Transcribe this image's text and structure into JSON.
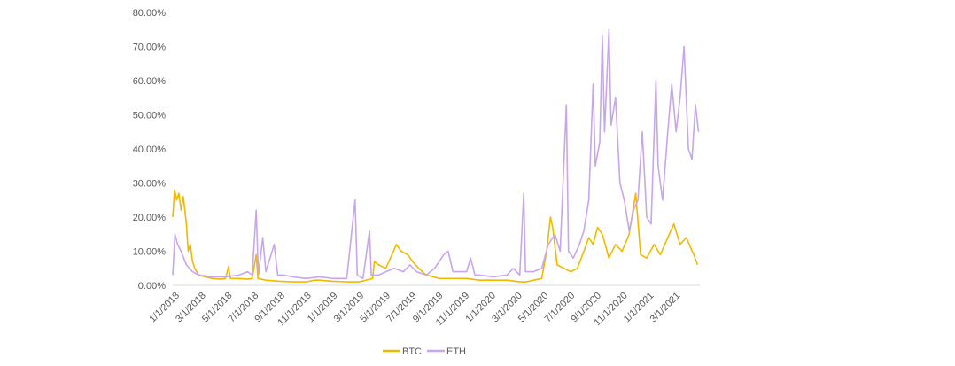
{
  "chart_data": {
    "type": "line",
    "title": "",
    "xlabel": "",
    "ylabel": "",
    "ylim": [
      0,
      0.8
    ],
    "y_ticks": [
      "0.00%",
      "10.00%",
      "20.00%",
      "30.00%",
      "40.00%",
      "50.00%",
      "60.00%",
      "70.00%",
      "80.00%"
    ],
    "x_ticks": [
      "1/1/2018",
      "3/1/2018",
      "5/1/2018",
      "7/1/2018",
      "9/1/2018",
      "11/1/2018",
      "1/1/2019",
      "3/1/2019",
      "5/1/2019",
      "7/1/2019",
      "9/1/2019",
      "11/1/2019",
      "1/1/2020",
      "3/1/2020",
      "5/1/2020",
      "7/1/2020",
      "9/1/2020",
      "11/1/2020",
      "1/1/2021",
      "3/1/2021"
    ],
    "x_range": [
      "2018-01-01",
      "2021-04-15"
    ],
    "grid": false,
    "legend_position": "bottom",
    "series": [
      {
        "name": "BTC",
        "color": "#F2B800",
        "points": [
          [
            "2018-01-01",
            0.2
          ],
          [
            "2018-01-05",
            0.28
          ],
          [
            "2018-01-10",
            0.25
          ],
          [
            "2018-01-15",
            0.27
          ],
          [
            "2018-01-20",
            0.22
          ],
          [
            "2018-01-25",
            0.26
          ],
          [
            "2018-02-01",
            0.18
          ],
          [
            "2018-02-05",
            0.1
          ],
          [
            "2018-02-10",
            0.12
          ],
          [
            "2018-02-15",
            0.07
          ],
          [
            "2018-02-20",
            0.05
          ],
          [
            "2018-03-01",
            0.03
          ],
          [
            "2018-03-15",
            0.025
          ],
          [
            "2018-04-01",
            0.02
          ],
          [
            "2018-04-20",
            0.018
          ],
          [
            "2018-05-01",
            0.02
          ],
          [
            "2018-05-08",
            0.055
          ],
          [
            "2018-05-12",
            0.02
          ],
          [
            "2018-06-01",
            0.02
          ],
          [
            "2018-06-20",
            0.018
          ],
          [
            "2018-07-01",
            0.02
          ],
          [
            "2018-07-10",
            0.09
          ],
          [
            "2018-07-14",
            0.02
          ],
          [
            "2018-08-01",
            0.015
          ],
          [
            "2018-09-01",
            0.012
          ],
          [
            "2018-10-01",
            0.01
          ],
          [
            "2018-11-01",
            0.01
          ],
          [
            "2018-11-20",
            0.015
          ],
          [
            "2018-12-01",
            0.015
          ],
          [
            "2019-01-01",
            0.012
          ],
          [
            "2019-02-01",
            0.01
          ],
          [
            "2019-03-01",
            0.01
          ],
          [
            "2019-04-01",
            0.02
          ],
          [
            "2019-04-05",
            0.07
          ],
          [
            "2019-04-15",
            0.06
          ],
          [
            "2019-05-01",
            0.05
          ],
          [
            "2019-05-15",
            0.09
          ],
          [
            "2019-05-25",
            0.12
          ],
          [
            "2019-06-05",
            0.1
          ],
          [
            "2019-06-20",
            0.09
          ],
          [
            "2019-07-01",
            0.07
          ],
          [
            "2019-07-15",
            0.05
          ],
          [
            "2019-08-01",
            0.03
          ],
          [
            "2019-09-01",
            0.02
          ],
          [
            "2019-10-01",
            0.02
          ],
          [
            "2019-11-01",
            0.02
          ],
          [
            "2019-12-01",
            0.015
          ],
          [
            "2020-01-01",
            0.015
          ],
          [
            "2020-02-01",
            0.015
          ],
          [
            "2020-03-01",
            0.01
          ],
          [
            "2020-03-15",
            0.01
          ],
          [
            "2020-04-01",
            0.015
          ],
          [
            "2020-04-20",
            0.02
          ],
          [
            "2020-05-01",
            0.1
          ],
          [
            "2020-05-10",
            0.2
          ],
          [
            "2020-05-15",
            0.17
          ],
          [
            "2020-05-25",
            0.06
          ],
          [
            "2020-06-10",
            0.05
          ],
          [
            "2020-06-25",
            0.04
          ],
          [
            "2020-07-10",
            0.05
          ],
          [
            "2020-07-25",
            0.1
          ],
          [
            "2020-08-05",
            0.14
          ],
          [
            "2020-08-15",
            0.12
          ],
          [
            "2020-08-25",
            0.17
          ],
          [
            "2020-09-05",
            0.15
          ],
          [
            "2020-09-20",
            0.08
          ],
          [
            "2020-10-05",
            0.12
          ],
          [
            "2020-10-20",
            0.1
          ],
          [
            "2020-11-05",
            0.15
          ],
          [
            "2020-11-20",
            0.27
          ],
          [
            "2020-12-01",
            0.09
          ],
          [
            "2020-12-15",
            0.08
          ],
          [
            "2021-01-01",
            0.12
          ],
          [
            "2021-01-15",
            0.09
          ],
          [
            "2021-02-01",
            0.14
          ],
          [
            "2021-02-15",
            0.18
          ],
          [
            "2021-03-01",
            0.12
          ],
          [
            "2021-03-15",
            0.14
          ],
          [
            "2021-04-01",
            0.09
          ],
          [
            "2021-04-10",
            0.06
          ]
        ]
      },
      {
        "name": "ETH",
        "color": "#C7A6EE",
        "points": [
          [
            "2018-01-01",
            0.03
          ],
          [
            "2018-01-06",
            0.15
          ],
          [
            "2018-01-12",
            0.12
          ],
          [
            "2018-01-20",
            0.1
          ],
          [
            "2018-02-01",
            0.06
          ],
          [
            "2018-02-15",
            0.04
          ],
          [
            "2018-03-01",
            0.03
          ],
          [
            "2018-04-01",
            0.025
          ],
          [
            "2018-05-01",
            0.025
          ],
          [
            "2018-06-01",
            0.03
          ],
          [
            "2018-06-20",
            0.04
          ],
          [
            "2018-07-01",
            0.03
          ],
          [
            "2018-07-10",
            0.22
          ],
          [
            "2018-07-15",
            0.03
          ],
          [
            "2018-07-25",
            0.14
          ],
          [
            "2018-08-01",
            0.04
          ],
          [
            "2018-08-20",
            0.12
          ],
          [
            "2018-08-28",
            0.03
          ],
          [
            "2018-09-10",
            0.03
          ],
          [
            "2018-10-01",
            0.025
          ],
          [
            "2018-11-01",
            0.02
          ],
          [
            "2018-12-01",
            0.025
          ],
          [
            "2019-01-01",
            0.02
          ],
          [
            "2019-02-01",
            0.02
          ],
          [
            "2019-02-20",
            0.25
          ],
          [
            "2019-02-25",
            0.03
          ],
          [
            "2019-03-10",
            0.02
          ],
          [
            "2019-03-25",
            0.16
          ],
          [
            "2019-03-29",
            0.03
          ],
          [
            "2019-04-15",
            0.03
          ],
          [
            "2019-05-01",
            0.04
          ],
          [
            "2019-05-20",
            0.05
          ],
          [
            "2019-06-10",
            0.04
          ],
          [
            "2019-06-25",
            0.06
          ],
          [
            "2019-07-10",
            0.04
          ],
          [
            "2019-08-01",
            0.03
          ],
          [
            "2019-08-20",
            0.05
          ],
          [
            "2019-09-10",
            0.09
          ],
          [
            "2019-09-20",
            0.1
          ],
          [
            "2019-10-01",
            0.04
          ],
          [
            "2019-11-01",
            0.04
          ],
          [
            "2019-11-10",
            0.08
          ],
          [
            "2019-11-20",
            0.03
          ],
          [
            "2019-12-01",
            0.03
          ],
          [
            "2020-01-01",
            0.025
          ],
          [
            "2020-02-01",
            0.03
          ],
          [
            "2020-02-15",
            0.05
          ],
          [
            "2020-03-01",
            0.03
          ],
          [
            "2020-03-10",
            0.27
          ],
          [
            "2020-03-14",
            0.04
          ],
          [
            "2020-04-01",
            0.04
          ],
          [
            "2020-04-20",
            0.05
          ],
          [
            "2020-05-05",
            0.12
          ],
          [
            "2020-05-20",
            0.15
          ],
          [
            "2020-06-01",
            0.1
          ],
          [
            "2020-06-15",
            0.53
          ],
          [
            "2020-06-20",
            0.1
          ],
          [
            "2020-07-01",
            0.08
          ],
          [
            "2020-07-15",
            0.12
          ],
          [
            "2020-07-25",
            0.16
          ],
          [
            "2020-08-05",
            0.25
          ],
          [
            "2020-08-15",
            0.59
          ],
          [
            "2020-08-20",
            0.35
          ],
          [
            "2020-08-30",
            0.42
          ],
          [
            "2020-09-05",
            0.73
          ],
          [
            "2020-09-10",
            0.45
          ],
          [
            "2020-09-20",
            0.75
          ],
          [
            "2020-09-25",
            0.47
          ],
          [
            "2020-10-05",
            0.55
          ],
          [
            "2020-10-15",
            0.3
          ],
          [
            "2020-10-25",
            0.25
          ],
          [
            "2020-11-05",
            0.16
          ],
          [
            "2020-11-15",
            0.22
          ],
          [
            "2020-11-25",
            0.25
          ],
          [
            "2020-12-05",
            0.45
          ],
          [
            "2020-12-15",
            0.2
          ],
          [
            "2020-12-25",
            0.18
          ],
          [
            "2021-01-05",
            0.6
          ],
          [
            "2021-01-10",
            0.35
          ],
          [
            "2021-01-20",
            0.25
          ],
          [
            "2021-02-01",
            0.45
          ],
          [
            "2021-02-10",
            0.59
          ],
          [
            "2021-02-20",
            0.45
          ],
          [
            "2021-03-01",
            0.55
          ],
          [
            "2021-03-10",
            0.7
          ],
          [
            "2021-03-20",
            0.4
          ],
          [
            "2021-03-28",
            0.37
          ],
          [
            "2021-04-05",
            0.53
          ],
          [
            "2021-04-12",
            0.45
          ]
        ]
      }
    ]
  }
}
